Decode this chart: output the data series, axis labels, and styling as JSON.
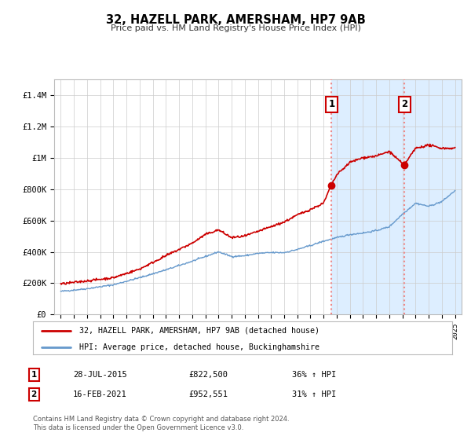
{
  "title": "32, HAZELL PARK, AMERSHAM, HP7 9AB",
  "subtitle": "Price paid vs. HM Land Registry's House Price Index (HPI)",
  "legend_label1": "32, HAZELL PARK, AMERSHAM, HP7 9AB (detached house)",
  "legend_label2": "HPI: Average price, detached house, Buckinghamshire",
  "annotation1_label": "1",
  "annotation1_date": "28-JUL-2015",
  "annotation1_price": "£822,500",
  "annotation1_hpi": "36% ↑ HPI",
  "annotation2_label": "2",
  "annotation2_date": "16-FEB-2021",
  "annotation2_price": "£952,551",
  "annotation2_hpi": "31% ↑ HPI",
  "footer1": "Contains HM Land Registry data © Crown copyright and database right 2024.",
  "footer2": "This data is licensed under the Open Government Licence v3.0.",
  "red_color": "#cc0000",
  "blue_color": "#6699cc",
  "shaded_color": "#ddeeff",
  "vline_color": "#ee8888",
  "ylim_max": 1500000,
  "yticks": [
    0,
    200000,
    400000,
    600000,
    800000,
    1000000,
    1200000,
    1400000
  ],
  "ytick_labels": [
    "£0",
    "£200K",
    "£400K",
    "£600K",
    "£800K",
    "£1M",
    "£1.2M",
    "£1.4M"
  ],
  "marker1_x": 2015.57,
  "marker1_y": 822500,
  "marker2_x": 2021.12,
  "marker2_y": 952551,
  "vline1_x": 2015.57,
  "vline2_x": 2021.12,
  "xlim_left": 1994.5,
  "xlim_right": 2025.5
}
